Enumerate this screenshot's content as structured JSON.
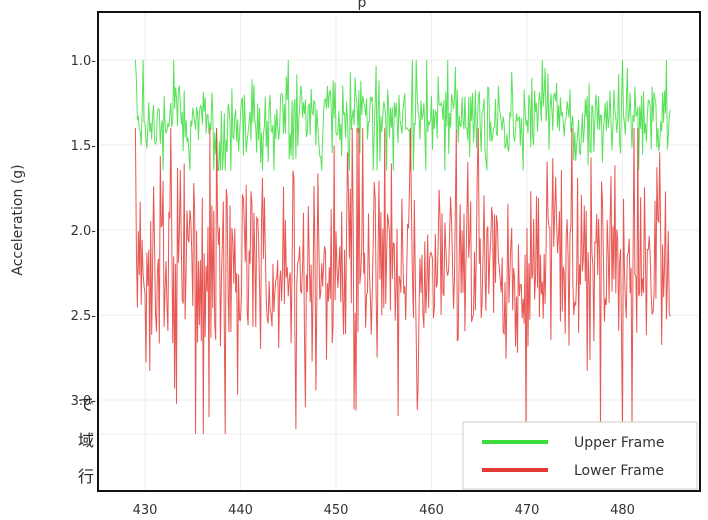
{
  "chart_data": {
    "type": "line",
    "title": "",
    "title_fragment": "p",
    "xlabel": "",
    "ylabel": "Acceleration (g)",
    "xlim": [
      427,
      488
    ],
    "ylim": [
      0.8,
      3.6
    ],
    "y_inverted": true,
    "x_ticks": [
      430,
      440,
      450,
      460,
      470,
      480
    ],
    "x_tick_labels": [
      "430",
      "440",
      "450",
      "460",
      "470",
      "480"
    ],
    "y_ticks": [
      1.0,
      1.5,
      2.0,
      2.5,
      3.0
    ],
    "y_tick_labels": [
      "1.0-",
      "1.5-",
      "2.0-",
      "2.5-",
      "3.0-"
    ],
    "grid": true,
    "legend_position": "bottom-right",
    "side_text": [
      "で",
      "域",
      "行"
    ],
    "series": [
      {
        "name": "Upper Frame",
        "color": "#3ddc3d",
        "x_start": 429,
        "x_end": 485,
        "y_typical_range": [
          1.15,
          1.55
        ],
        "y_extremes": [
          1.0,
          1.65
        ],
        "y_mean": 1.35
      },
      {
        "name": "Lower Frame",
        "color": "#e53935",
        "x_start": 429,
        "x_end": 485,
        "y_typical_range": [
          1.8,
          2.7
        ],
        "y_extremes": [
          1.4,
          3.2
        ],
        "y_mean": 2.2
      }
    ]
  }
}
